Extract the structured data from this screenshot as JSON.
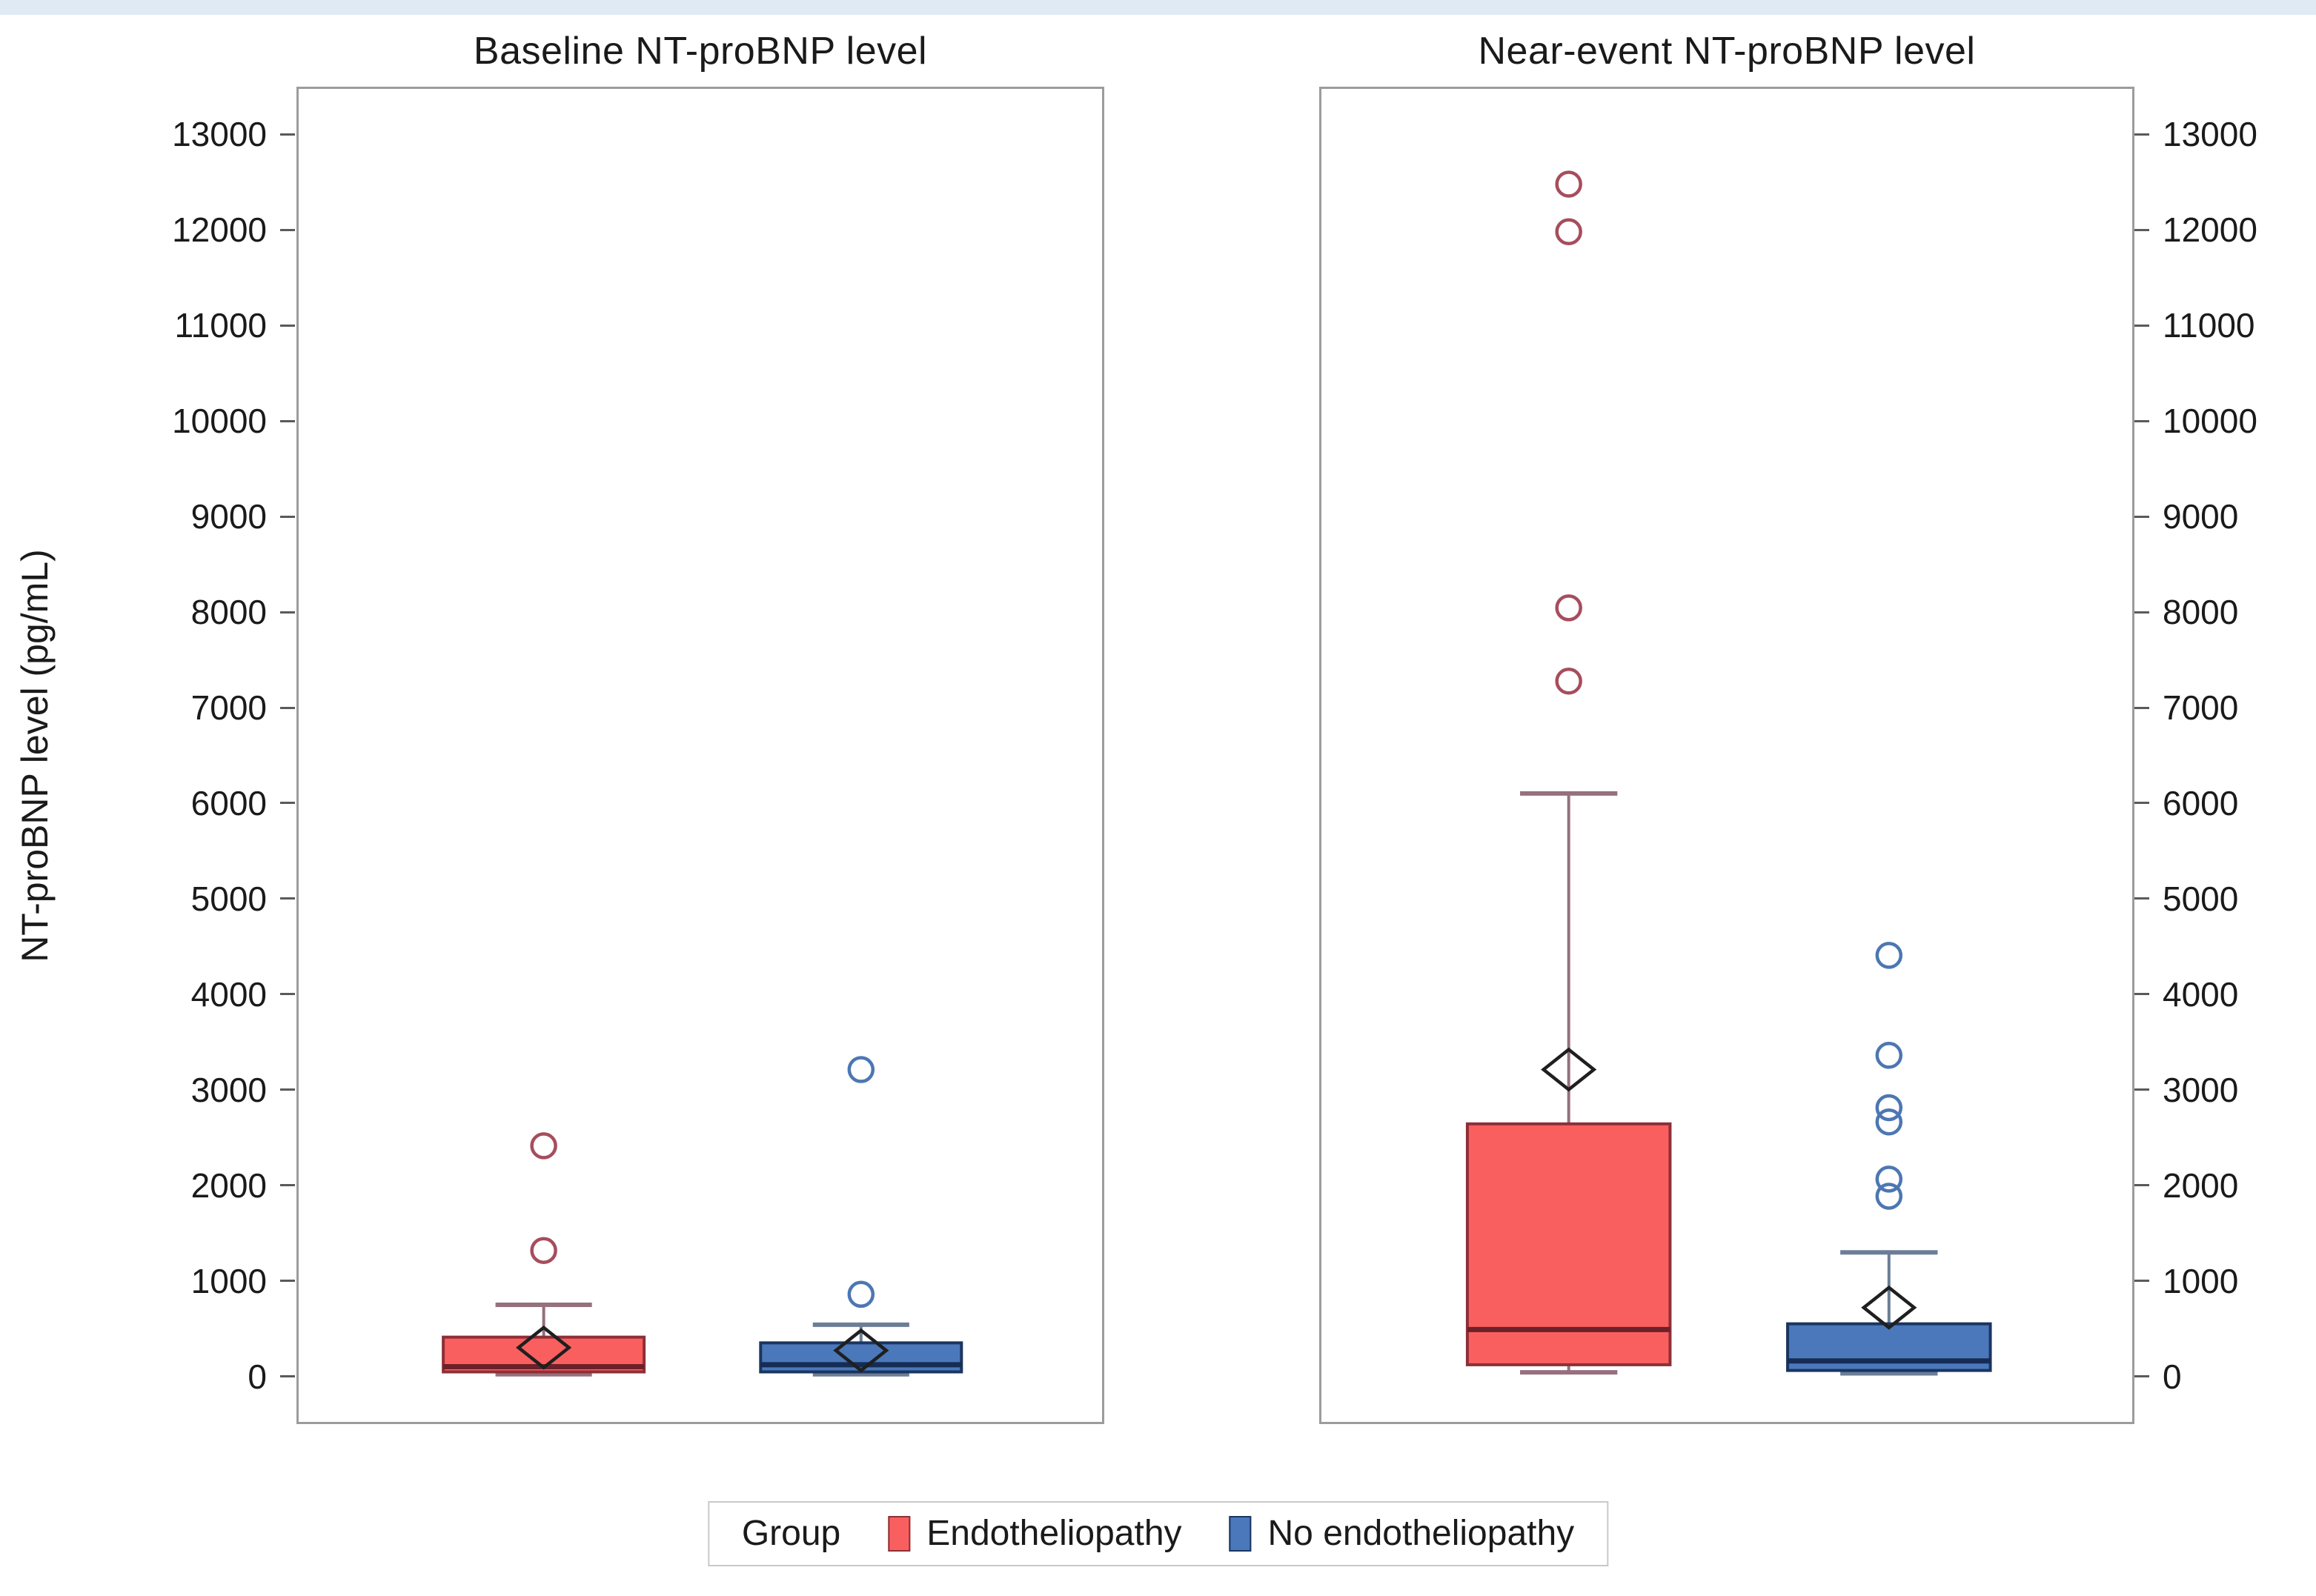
{
  "figure": {
    "top_band_color": "#dfeaf5",
    "panel_border_color": "#9c9c9c",
    "tick_color": "#5a5a5a",
    "background": "#ffffff"
  },
  "legend": {
    "title": "Group",
    "items": [
      {
        "label": "Endotheliopathy",
        "color": "#fa5f5f",
        "edge": "#8c3038"
      },
      {
        "label": "No endotheliopathy",
        "color": "#4a78bb",
        "edge": "#1a3560"
      }
    ]
  },
  "chart_data": {
    "type": "boxplot",
    "ylabel": "NT-proBNP level (pg/mL)",
    "ylim": [
      -500,
      13500
    ],
    "yticks": [
      0,
      1000,
      2000,
      3000,
      4000,
      5000,
      6000,
      7000,
      8000,
      9000,
      10000,
      11000,
      12000,
      13000
    ],
    "grid": false,
    "legend_position": "bottom",
    "series_styles": [
      {
        "name": "Endotheliopathy",
        "fill": "#fa5f5f",
        "edge": "#8c3038",
        "median": "#6e2028",
        "whisker": "#96707c",
        "outlier": "#a64d5e"
      },
      {
        "name": "No endotheliopathy",
        "fill": "#4a78bb",
        "edge": "#1a3560",
        "median": "#152c55",
        "whisker": "#6b7e96",
        "outlier": "#4c77b2"
      }
    ],
    "panels": [
      {
        "title": "Baseline NT-proBNP level",
        "groups": [
          {
            "name": "Endotheliopathy",
            "whisker_low": 0,
            "q1": 25,
            "median": 80,
            "q3": 390,
            "whisker_high": 730,
            "mean": 280,
            "outliers": [
              1300,
              2400
            ]
          },
          {
            "name": "No endotheliopathy",
            "whisker_low": 0,
            "q1": 25,
            "median": 100,
            "q3": 330,
            "whisker_high": 520,
            "mean": 250,
            "outliers": [
              840,
              3200
            ]
          }
        ]
      },
      {
        "title": "Near-event NT-proBNP level",
        "groups": [
          {
            "name": "Endotheliopathy",
            "whisker_low": 20,
            "q1": 100,
            "median": 470,
            "q3": 2630,
            "whisker_high": 6100,
            "mean": 3200,
            "outliers": [
              7280,
              8050,
              12000,
              12500
            ]
          },
          {
            "name": "No endotheliopathy",
            "whisker_low": 10,
            "q1": 40,
            "median": 140,
            "q3": 530,
            "whisker_high": 1280,
            "mean": 700,
            "outliers": [
              1870,
              2050,
              2650,
              2800,
              3350,
              4400
            ]
          }
        ]
      }
    ]
  }
}
